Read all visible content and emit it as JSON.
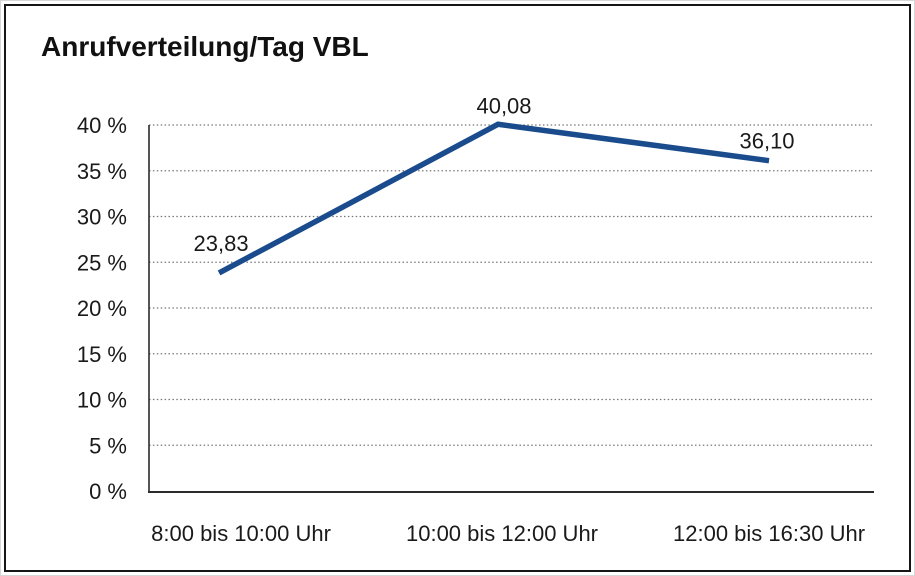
{
  "chart_data": {
    "type": "line",
    "title": "Anrufverteilung/Tag VBL",
    "categories": [
      "8:00 bis 10:00 Uhr",
      "10:00 bis 12:00 Uhr",
      "12:00 bis 16:30 Uhr"
    ],
    "values": [
      23.83,
      40.08,
      36.1
    ],
    "point_labels": [
      "23,83",
      "40,08",
      "36,10"
    ],
    "xlabel": "",
    "ylabel": "",
    "ylim": [
      0,
      40
    ],
    "ytick_step": 5,
    "ytick_labels": [
      "0 %",
      "5 %",
      "10 %",
      "15 %",
      "20 %",
      "25 %",
      "30 %",
      "35 %",
      "40 %"
    ],
    "grid": "horizontal-dotted",
    "legend": "none",
    "colors": {
      "line": "#1a4b8c",
      "grid": "#777777",
      "axis": "#2b2b2b",
      "text": "#1a1a1a",
      "frame": "#161616",
      "background": "#ffffff"
    }
  }
}
